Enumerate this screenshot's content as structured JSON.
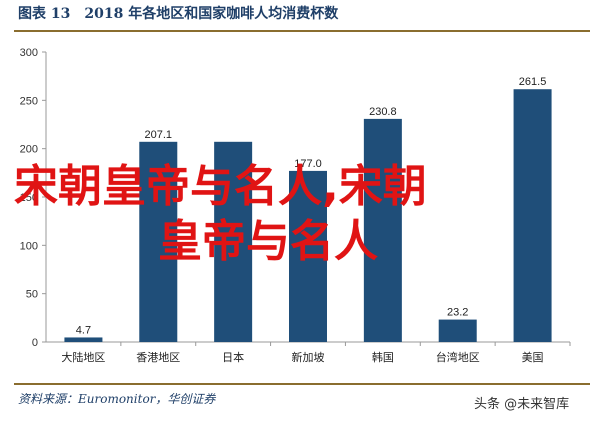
{
  "figure": {
    "title": "图表 13　2018 年各地区和国家咖啡人均消费杯数",
    "source": "资料来源：Euromonitor，华创证券"
  },
  "overlay": {
    "watermark_line1": "宋朝皇帝与名人,宋朝",
    "watermark_line2": "皇帝与名人",
    "credit": "头条 @未来智库"
  },
  "colors": {
    "bar": "#1f4e79",
    "axis": "#999999",
    "rule": "#8a6d2f",
    "title_text": "#1f3f68",
    "watermark": "#e01414"
  },
  "chart_data": {
    "type": "bar",
    "categories": [
      "大陆地区",
      "香港地区",
      "日本",
      "新加坡",
      "韩国",
      "台湾地区",
      "美国"
    ],
    "values": [
      4.7,
      207.1,
      207.1,
      177.0,
      230.8,
      23.2,
      261.5
    ],
    "data_labels": [
      "4.7",
      "207.1",
      "",
      "177.0",
      "230.8",
      "23.2",
      "261.5"
    ],
    "yticks": [
      0,
      50,
      100,
      150,
      200,
      250,
      300
    ],
    "ylim": [
      0,
      300
    ],
    "grid": false,
    "legend": "none"
  }
}
